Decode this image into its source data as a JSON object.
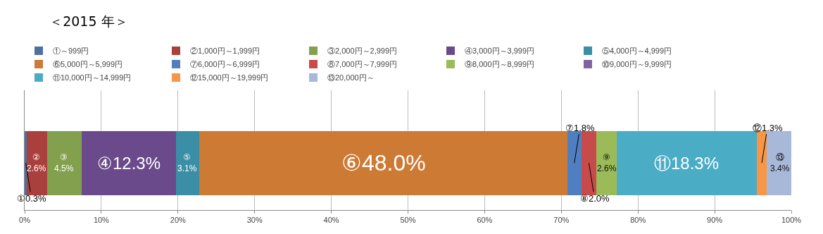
{
  "chart_data": {
    "type": "bar",
    "title": "＜2015 年＞",
    "orientation": "horizontal",
    "stacked": true,
    "categories": [
      null
    ],
    "xlim": [
      0,
      100
    ],
    "xticks": [
      {
        "value": 0,
        "label": "0%"
      },
      {
        "value": 10,
        "label": "10%"
      },
      {
        "value": 20,
        "label": "20%"
      },
      {
        "value": 30,
        "label": "30%"
      },
      {
        "value": 40,
        "label": "40%"
      },
      {
        "value": 50,
        "label": "50%"
      },
      {
        "value": 60,
        "label": "60%"
      },
      {
        "value": 70,
        "label": "70%"
      },
      {
        "value": 80,
        "label": "80%"
      },
      {
        "value": 90,
        "label": "90%"
      },
      {
        "value": 100,
        "label": "100%"
      }
    ],
    "grid": "x",
    "legend": "top",
    "series": [
      {
        "name": "①～999円",
        "color": "#4f6fa0",
        "values": [
          0.3
        ],
        "value_labels": [
          "①0.3%"
        ]
      },
      {
        "name": "②1,000円～1,999円",
        "color": "#aa403d",
        "values": [
          2.6
        ],
        "value_labels": [
          "②2.6%"
        ]
      },
      {
        "name": "③2,000円～2,999円",
        "color": "#83a04e",
        "values": [
          4.5
        ],
        "value_labels": [
          "③4.5%"
        ]
      },
      {
        "name": "④3,000円～3,999円",
        "color": "#6a4a8a",
        "values": [
          12.3
        ],
        "value_labels": [
          "④12.3%"
        ]
      },
      {
        "name": "⑤4,000円～4,999円",
        "color": "#3a8ea6",
        "values": [
          3.1
        ],
        "value_labels": [
          "⑤3.1%"
        ]
      },
      {
        "name": "⑥5,000円～5,999円",
        "color": "#cd7a35",
        "values": [
          48.0
        ],
        "value_labels": [
          "⑥48.0%"
        ]
      },
      {
        "name": "⑦6,000円～6,999円",
        "color": "#4f7fc0",
        "values": [
          1.8
        ],
        "value_labels": [
          "⑦1.8%"
        ]
      },
      {
        "name": "⑧7,000円～7,999円",
        "color": "#c84b4b",
        "values": [
          2.0
        ],
        "value_labels": [
          "⑧2.0%"
        ]
      },
      {
        "name": "⑨8,000円～8,999円",
        "color": "#9bbb59",
        "values": [
          2.6
        ],
        "value_labels": [
          "⑨2.6%"
        ]
      },
      {
        "name": "⑩9,000円～9,999円",
        "color": "#8064a2",
        "values": [
          null
        ],
        "value_labels": [
          null
        ]
      },
      {
        "name": "⑪10,000円～14,999円",
        "color": "#4bacc6",
        "values": [
          18.3
        ],
        "value_labels": [
          "⑪18.3%"
        ]
      },
      {
        "name": "⑫15,000円～19,999円",
        "color": "#f79646",
        "values": [
          1.3
        ],
        "value_labels": [
          "⑫1.3%"
        ]
      },
      {
        "name": "⑬20,000円～",
        "color": "#a8b8d8",
        "values": [
          3.4
        ],
        "value_labels": [
          "⑬3.4%"
        ]
      }
    ]
  }
}
